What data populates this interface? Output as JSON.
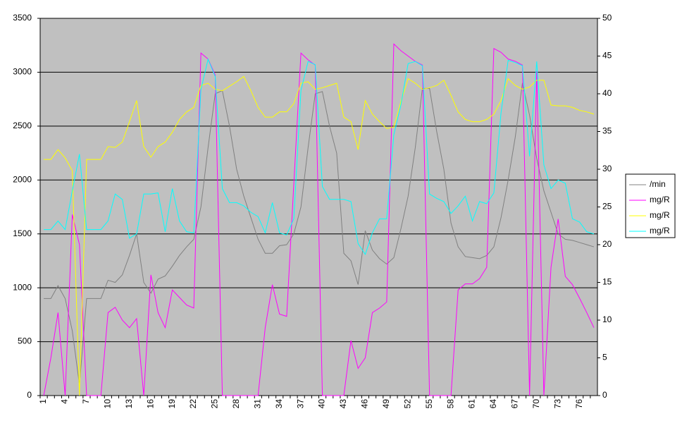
{
  "chart_data": {
    "type": "line",
    "categories": [
      1,
      null,
      null,
      4,
      null,
      null,
      7,
      null,
      null,
      10,
      null,
      null,
      13,
      null,
      null,
      16,
      null,
      null,
      19,
      null,
      null,
      22,
      null,
      null,
      25,
      null,
      null,
      28,
      null,
      null,
      31,
      null,
      null,
      34,
      null,
      null,
      37,
      null,
      null,
      40,
      null,
      null,
      43,
      null,
      null,
      46,
      null,
      null,
      49,
      null,
      null,
      52,
      null,
      null,
      55,
      null,
      null,
      58,
      null,
      null,
      61,
      null,
      null,
      64,
      null,
      null,
      67,
      null,
      null,
      70,
      null,
      null,
      73,
      null,
      null,
      76,
      null,
      null
    ],
    "ylim": [
      0,
      3500
    ],
    "yticks": [
      0,
      500,
      1000,
      1500,
      2000,
      2500,
      3000,
      3500
    ],
    "y2lim": [
      0,
      50
    ],
    "y2ticks": [
      0,
      5,
      10,
      15,
      20,
      25,
      30,
      35,
      40,
      45,
      50
    ],
    "grid": true,
    "legend": "right",
    "series": [
      {
        "name": "/min",
        "color": "#808080",
        "values": [
          900,
          900,
          1020,
          900,
          600,
          100,
          900,
          900,
          900,
          1070,
          1050,
          1120,
          1300,
          1500,
          1050,
          950,
          1080,
          1110,
          1200,
          1300,
          1380,
          1450,
          1750,
          2300,
          2800,
          2830,
          2500,
          2100,
          1850,
          1650,
          1450,
          1320,
          1320,
          1390,
          1400,
          1500,
          1750,
          2300,
          2800,
          2820,
          2500,
          2250,
          1320,
          1250,
          1030,
          1530,
          1350,
          1270,
          1220,
          1280,
          1550,
          1850,
          2300,
          2850,
          2850,
          2450,
          2100,
          1600,
          1380,
          1290,
          1280,
          1270,
          1300,
          1380,
          1650,
          2000,
          2400,
          2900,
          2600,
          2200,
          1900,
          1700,
          1500,
          1450,
          1440,
          1420,
          1400,
          1380
        ]
      },
      {
        "name": "mg/R",
        "color": "#ff00ff",
        "axis": "y2",
        "values": [
          0,
          5,
          11,
          0,
          24,
          20,
          0,
          0,
          0,
          11,
          11.7,
          10,
          9,
          10.2,
          0,
          16,
          11,
          9,
          14,
          13,
          12,
          11.6,
          45.4,
          44.6,
          42.5,
          0,
          0,
          0,
          0,
          0,
          0,
          9,
          14.7,
          10.8,
          10.5,
          28,
          45.4,
          44.5,
          43.8,
          0,
          0,
          0,
          0,
          7.3,
          3.6,
          5,
          11,
          11.6,
          12.4,
          46.6,
          45.7,
          45,
          44.3,
          43.8,
          0,
          0,
          0,
          0,
          14,
          14.8,
          14.8,
          15.5,
          17,
          46,
          45.5,
          44.6,
          44.3,
          43.8,
          0,
          43,
          0,
          17,
          23.4,
          15.8,
          14.7,
          12.9,
          11,
          9
        ]
      },
      {
        "name": "mg/R",
        "color": "#ffff00",
        "axis": "y2",
        "values": [
          31.3,
          31.3,
          32.6,
          31.5,
          29.8,
          0,
          31.3,
          31.3,
          31.3,
          33,
          32.9,
          33.6,
          36.3,
          39.1,
          33,
          31.6,
          33,
          33.6,
          34.9,
          36.6,
          37.6,
          38.2,
          41.1,
          41.4,
          40.6,
          40.4,
          41,
          41.6,
          42.3,
          40.4,
          38.2,
          36.9,
          36.9,
          37.6,
          37.6,
          38.7,
          41.4,
          41.6,
          40.6,
          40.8,
          41.1,
          41.4,
          36.9,
          36.3,
          32.6,
          39.1,
          37.3,
          36.3,
          35.4,
          35.6,
          39,
          42,
          41.4,
          40.6,
          40.8,
          41.1,
          41.8,
          39.8,
          37.6,
          36.6,
          36.3,
          36.3,
          36.6,
          37.3,
          39.1,
          42,
          41.1,
          40.6,
          40.9,
          41.8,
          41.8,
          38.5,
          38.4,
          38.4,
          38.2,
          37.8,
          37.6,
          37.3
        ]
      },
      {
        "name": "mg/R",
        "color": "#00ffff",
        "values": [
          1540,
          1540,
          1620,
          1540,
          1900,
          2240,
          1540,
          1540,
          1540,
          1620,
          1870,
          1820,
          1460,
          1500,
          1870,
          1870,
          1880,
          1520,
          1920,
          1620,
          1520,
          1510,
          2840,
          3120,
          2960,
          1920,
          1790,
          1790,
          1760,
          1700,
          1660,
          1510,
          1790,
          1510,
          1490,
          1640,
          2830,
          3100,
          3070,
          1940,
          1820,
          1820,
          1820,
          1800,
          1410,
          1310,
          1510,
          1640,
          1640,
          2420,
          2700,
          3080,
          3100,
          3060,
          1870,
          1830,
          1800,
          1690,
          1760,
          1850,
          1620,
          1800,
          1780,
          1880,
          2620,
          3110,
          3090,
          3060,
          2220,
          3100,
          2140,
          1920,
          2000,
          1970,
          1640,
          1610,
          1520,
          1500
        ]
      }
    ]
  }
}
